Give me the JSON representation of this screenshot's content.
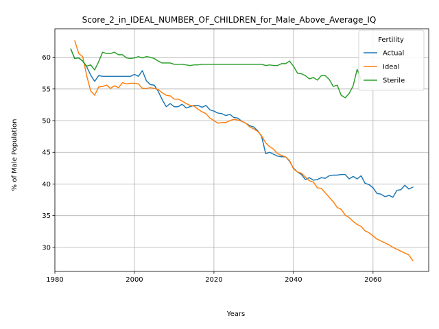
{
  "chart_data": {
    "type": "line",
    "title": "Score_2_in_IDEAL_NUMBER_OF_CHILDREN_for_Male_Above_Average_IQ",
    "xlabel": "Years",
    "ylabel": "% of Male Population",
    "xlim": [
      1980,
      2074
    ],
    "ylim": [
      26.2,
      64.5
    ],
    "xticks": [
      1980,
      2000,
      2020,
      2040,
      2060
    ],
    "yticks": [
      30,
      35,
      40,
      45,
      50,
      55,
      60
    ],
    "grid": true,
    "legend": {
      "title": "Fertility",
      "placement": "top-right"
    },
    "series": [
      {
        "name": "Actual",
        "color": "#1f77b4",
        "x": [
          1984,
          1985,
          1986,
          1987,
          1988,
          1989,
          1990,
          1991,
          1992,
          1993,
          1994,
          1995,
          1996,
          1997,
          1998,
          1999,
          2000,
          2001,
          2002,
          2003,
          2004,
          2005,
          2006,
          2007,
          2008,
          2009,
          2010,
          2011,
          2012,
          2013,
          2014,
          2015,
          2016,
          2017,
          2018,
          2019,
          2020,
          2021,
          2022,
          2023,
          2024,
          2025,
          2026,
          2027,
          2028,
          2029,
          2030,
          2031,
          2032,
          2033,
          2034,
          2035,
          2036,
          2037,
          2038,
          2039,
          2040,
          2041,
          2042,
          2043,
          2044,
          2045,
          2046,
          2047,
          2048,
          2049,
          2050,
          2051,
          2052,
          2053,
          2054,
          2055,
          2056,
          2057,
          2058,
          2059,
          2060,
          2061,
          2062,
          2063,
          2064,
          2065,
          2066,
          2067,
          2068,
          2069,
          2070
        ],
        "y": [
          61.3,
          59.8,
          59.9,
          59.4,
          58.5,
          57.2,
          56.2,
          57.1,
          57.0,
          57.0,
          57.0,
          57.0,
          57.0,
          57.0,
          57.0,
          57.0,
          57.3,
          57.0,
          57.9,
          56.3,
          55.7,
          55.6,
          54.6,
          53.3,
          52.2,
          52.7,
          52.2,
          52.2,
          52.6,
          52.0,
          52.2,
          52.4,
          52.4,
          52.1,
          52.4,
          51.7,
          51.5,
          51.2,
          51.1,
          50.8,
          51.0,
          50.5,
          50.4,
          49.9,
          49.6,
          49.2,
          49.0,
          48.4,
          47.5,
          44.8,
          45.0,
          44.7,
          44.4,
          44.3,
          44.3,
          43.6,
          42.5,
          41.9,
          41.5,
          40.7,
          41.0,
          40.6,
          40.7,
          41.0,
          40.9,
          41.3,
          41.4,
          41.4,
          41.5,
          41.5,
          40.8,
          41.2,
          40.8,
          41.3,
          40.1,
          39.9,
          39.4,
          38.5,
          38.4,
          38.0,
          38.2,
          37.9,
          39.0,
          39.1,
          39.8,
          39.2,
          39.5
        ]
      },
      {
        "name": "Ideal",
        "color": "#ff7f0e",
        "x": [
          1985,
          1986,
          1987,
          1988,
          1989,
          1990,
          1991,
          1992,
          1993,
          1994,
          1995,
          1996,
          1997,
          1998,
          1999,
          2000,
          2001,
          2002,
          2003,
          2004,
          2005,
          2006,
          2007,
          2008,
          2009,
          2010,
          2011,
          2012,
          2013,
          2014,
          2015,
          2016,
          2017,
          2018,
          2019,
          2020,
          2021,
          2022,
          2023,
          2024,
          2025,
          2026,
          2027,
          2028,
          2029,
          2030,
          2031,
          2032,
          2033,
          2034,
          2035,
          2036,
          2037,
          2038,
          2039,
          2040,
          2041,
          2042,
          2043,
          2044,
          2045,
          2046,
          2047,
          2048,
          2049,
          2050,
          2051,
          2052,
          2053,
          2054,
          2055,
          2056,
          2057,
          2058,
          2059,
          2060,
          2061,
          2062,
          2063,
          2064,
          2065,
          2066,
          2067,
          2068,
          2069,
          2070
        ],
        "y": [
          62.6,
          60.6,
          60.1,
          57.1,
          54.7,
          54.0,
          55.3,
          55.4,
          55.6,
          55.1,
          55.5,
          55.2,
          56.0,
          55.8,
          55.9,
          55.9,
          55.8,
          55.1,
          55.1,
          55.2,
          55.1,
          54.9,
          54.4,
          54.0,
          53.9,
          53.4,
          53.4,
          53.1,
          52.7,
          52.4,
          52.3,
          51.8,
          51.4,
          51.1,
          50.4,
          50.0,
          49.6,
          49.7,
          49.7,
          50.0,
          50.2,
          50.1,
          49.9,
          49.6,
          49.0,
          48.7,
          48.3,
          47.6,
          46.5,
          45.9,
          45.5,
          44.8,
          44.5,
          44.3,
          43.7,
          42.4,
          41.9,
          41.7,
          41.1,
          40.5,
          40.3,
          39.4,
          39.3,
          38.6,
          37.9,
          37.2,
          36.3,
          36.0,
          35.1,
          34.7,
          34.1,
          33.6,
          33.3,
          32.6,
          32.3,
          31.8,
          31.3,
          31.0,
          30.7,
          30.4,
          30.0,
          29.7,
          29.4,
          29.1,
          28.8,
          27.9
        ]
      },
      {
        "name": "Sterile",
        "color": "#2ca02c",
        "x": [
          1984,
          1985,
          1986,
          1987,
          1988,
          1989,
          1990,
          1991,
          1992,
          1993,
          1994,
          1995,
          1996,
          1997,
          1998,
          1999,
          2000,
          2001,
          2002,
          2003,
          2004,
          2005,
          2006,
          2007,
          2008,
          2009,
          2010,
          2011,
          2012,
          2013,
          2014,
          2015,
          2016,
          2017,
          2018,
          2019,
          2020,
          2021,
          2022,
          2023,
          2024,
          2025,
          2026,
          2027,
          2028,
          2029,
          2030,
          2031,
          2032,
          2033,
          2034,
          2035,
          2036,
          2037,
          2038,
          2039,
          2040,
          2041,
          2042,
          2043,
          2044,
          2045,
          2046,
          2047,
          2048,
          2049,
          2050,
          2051,
          2052,
          2053,
          2054,
          2055,
          2056,
          2057
        ],
        "y": [
          61.3,
          59.8,
          59.9,
          59.4,
          58.6,
          58.8,
          58.0,
          59.3,
          60.8,
          60.6,
          60.6,
          60.8,
          60.4,
          60.4,
          59.9,
          59.8,
          59.9,
          60.1,
          59.9,
          60.1,
          60.0,
          59.8,
          59.4,
          59.1,
          59.1,
          59.1,
          58.9,
          58.9,
          58.9,
          58.8,
          58.7,
          58.8,
          58.8,
          58.9,
          58.9,
          58.9,
          58.9,
          58.9,
          58.9,
          58.9,
          58.9,
          58.9,
          58.9,
          58.9,
          58.9,
          58.9,
          58.9,
          58.9,
          58.9,
          58.7,
          58.8,
          58.7,
          58.7,
          59.0,
          59.0,
          59.4,
          58.6,
          57.5,
          57.4,
          57.1,
          56.6,
          56.8,
          56.4,
          57.1,
          57.1,
          56.5,
          55.4,
          55.6,
          54.0,
          53.6,
          54.3,
          55.5,
          58.1,
          56.5
        ]
      }
    ]
  }
}
